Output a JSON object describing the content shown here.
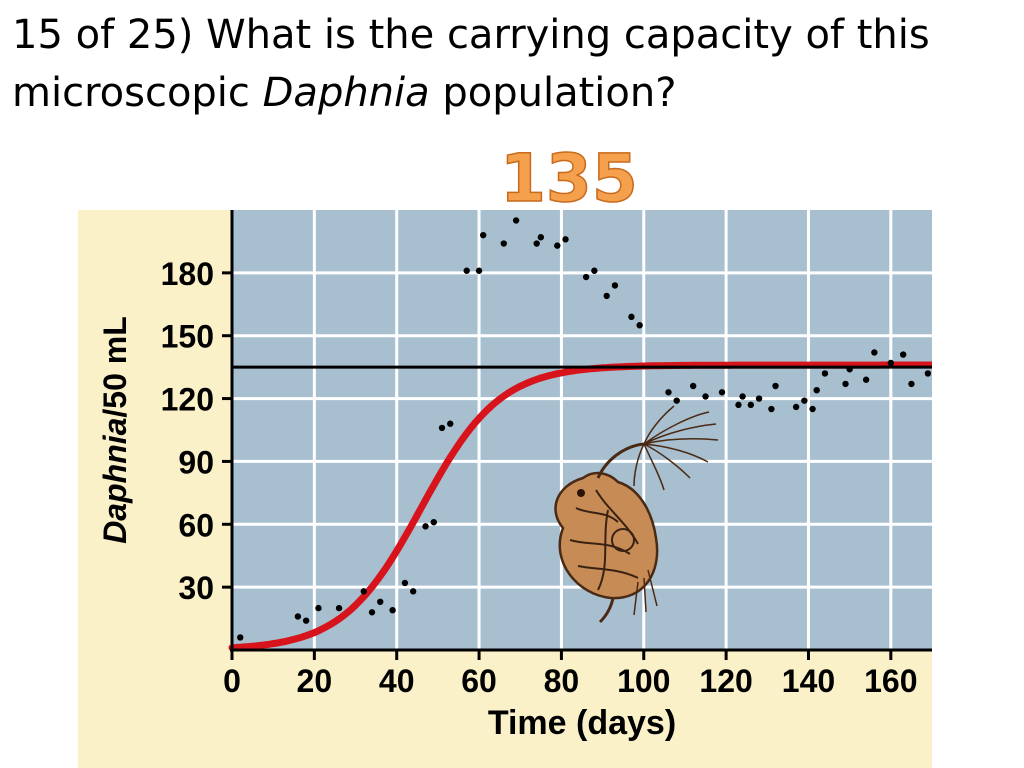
{
  "slide": {
    "question_prefix": "15 of 25) What is the carrying capacity of this microscopic ",
    "question_italic": "Daphnia",
    "question_suffix": " population?",
    "answer": "135"
  },
  "colors": {
    "panel_background": "#fbf1c9",
    "plot_background": "#a7bfcf",
    "grid": "#ffffff",
    "logistic_curve": "#d7141b",
    "carrying_capacity_line": "#000000",
    "data_points": "#000000",
    "answer_fill": "#f4a04c"
  },
  "illustration": {
    "icon": "daphnia-icon"
  },
  "chart_data": {
    "type": "scatter",
    "xlabel": "Time (days)",
    "ylabel_italic": "Daphnia",
    "ylabel_suffix": "/50 mL",
    "xlim": [
      0,
      170
    ],
    "ylim": [
      0,
      210
    ],
    "xticks": [
      0,
      20,
      40,
      60,
      80,
      100,
      120,
      140,
      160
    ],
    "yticks": [
      30,
      60,
      90,
      120,
      150,
      180
    ],
    "grid": true,
    "carrying_capacity": 135,
    "logistic_curve": {
      "K": 136,
      "r": 0.105,
      "midpoint": 46,
      "x_range": [
        0,
        170
      ]
    },
    "points": [
      [
        2,
        6
      ],
      [
        16,
        16
      ],
      [
        18,
        14
      ],
      [
        21,
        20
      ],
      [
        26,
        20
      ],
      [
        32,
        28
      ],
      [
        34,
        18
      ],
      [
        36,
        23
      ],
      [
        39,
        19
      ],
      [
        42,
        32
      ],
      [
        44,
        28
      ],
      [
        47,
        59
      ],
      [
        49,
        61
      ],
      [
        51,
        106
      ],
      [
        53,
        108
      ],
      [
        57,
        181
      ],
      [
        60,
        181
      ],
      [
        61,
        198
      ],
      [
        66,
        194
      ],
      [
        69,
        205
      ],
      [
        74,
        194
      ],
      [
        75,
        197
      ],
      [
        79,
        193
      ],
      [
        81,
        196
      ],
      [
        86,
        178
      ],
      [
        88,
        181
      ],
      [
        91,
        169
      ],
      [
        93,
        174
      ],
      [
        97,
        159
      ],
      [
        99,
        155
      ],
      [
        106,
        123
      ],
      [
        108,
        119
      ],
      [
        112,
        126
      ],
      [
        115,
        121
      ],
      [
        119,
        123
      ],
      [
        123,
        117
      ],
      [
        124,
        121
      ],
      [
        126,
        117
      ],
      [
        128,
        120
      ],
      [
        131,
        115
      ],
      [
        132,
        126
      ],
      [
        137,
        116
      ],
      [
        139,
        119
      ],
      [
        141,
        115
      ],
      [
        142,
        124
      ],
      [
        144,
        132
      ],
      [
        149,
        127
      ],
      [
        150,
        134
      ],
      [
        154,
        129
      ],
      [
        156,
        142
      ],
      [
        160,
        137
      ],
      [
        163,
        141
      ],
      [
        165,
        127
      ],
      [
        169,
        132
      ]
    ]
  }
}
